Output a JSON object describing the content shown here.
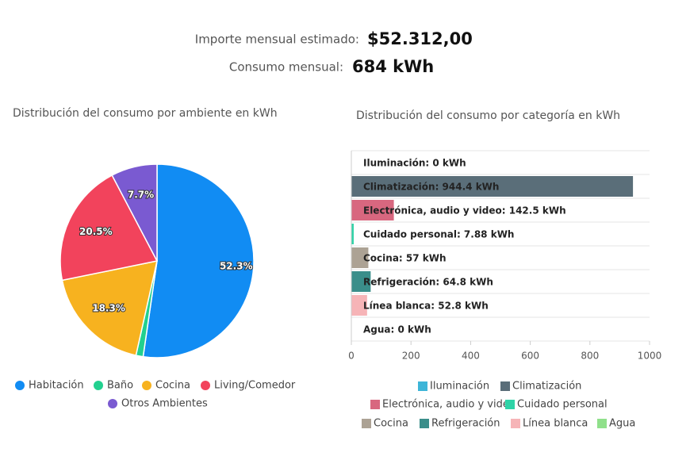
{
  "summary": [
    {
      "label": "Importe mensual estimado:",
      "value": "$52.312,00"
    },
    {
      "label": "Consumo mensual:",
      "value": "684 kWh"
    }
  ],
  "chart_data": [
    {
      "type": "pie",
      "title": "Distribución del consumo por ambiente en kWh",
      "categories": [
        "Habitación",
        "Baño",
        "Cocina",
        "Living/Comedor",
        "Otros Ambientes"
      ],
      "values": [
        52.3,
        1.2,
        18.3,
        20.5,
        7.7
      ],
      "value_labels": [
        "52.3%",
        null,
        "18.3%",
        "20.5%",
        "7.7%"
      ],
      "colors": [
        "#118cf3",
        "#22d08f",
        "#f7b21f",
        "#f2435c",
        "#7a5ad1"
      ],
      "legend": "bottom"
    },
    {
      "type": "bar",
      "orientation": "horizontal",
      "title": "Distribución del consumo por categoría en kWh",
      "categories": [
        "Iluminación",
        "Climatización",
        "Electrónica, audio y video",
        "Cuidado personal",
        "Cocina",
        "Refrigeración",
        "Línea blanca",
        "Agua"
      ],
      "values": [
        0,
        944.4,
        142.5,
        7.88,
        57,
        64.8,
        52.8,
        0
      ],
      "value_labels": [
        "Iluminación: 0 kWh",
        "Climatización: 944.4 kWh",
        "Electrónica, audio y video: 142.5 kWh",
        "Cuidado personal: 7.88 kWh",
        "Cocina: 57 kWh",
        "Refrigeración: 64.8 kWh",
        "Línea blanca: 52.8 kWh",
        "Agua: 0 kWh"
      ],
      "colors": [
        "#3db5d8",
        "#5a6e79",
        "#d8677f",
        "#2fd3a7",
        "#aca294",
        "#3a8e8a",
        "#f6b4b7",
        "#90e08b"
      ],
      "xlim": [
        0,
        1000
      ],
      "xticks": [
        0,
        200,
        400,
        600,
        800,
        1000
      ],
      "legend": "bottom"
    }
  ]
}
